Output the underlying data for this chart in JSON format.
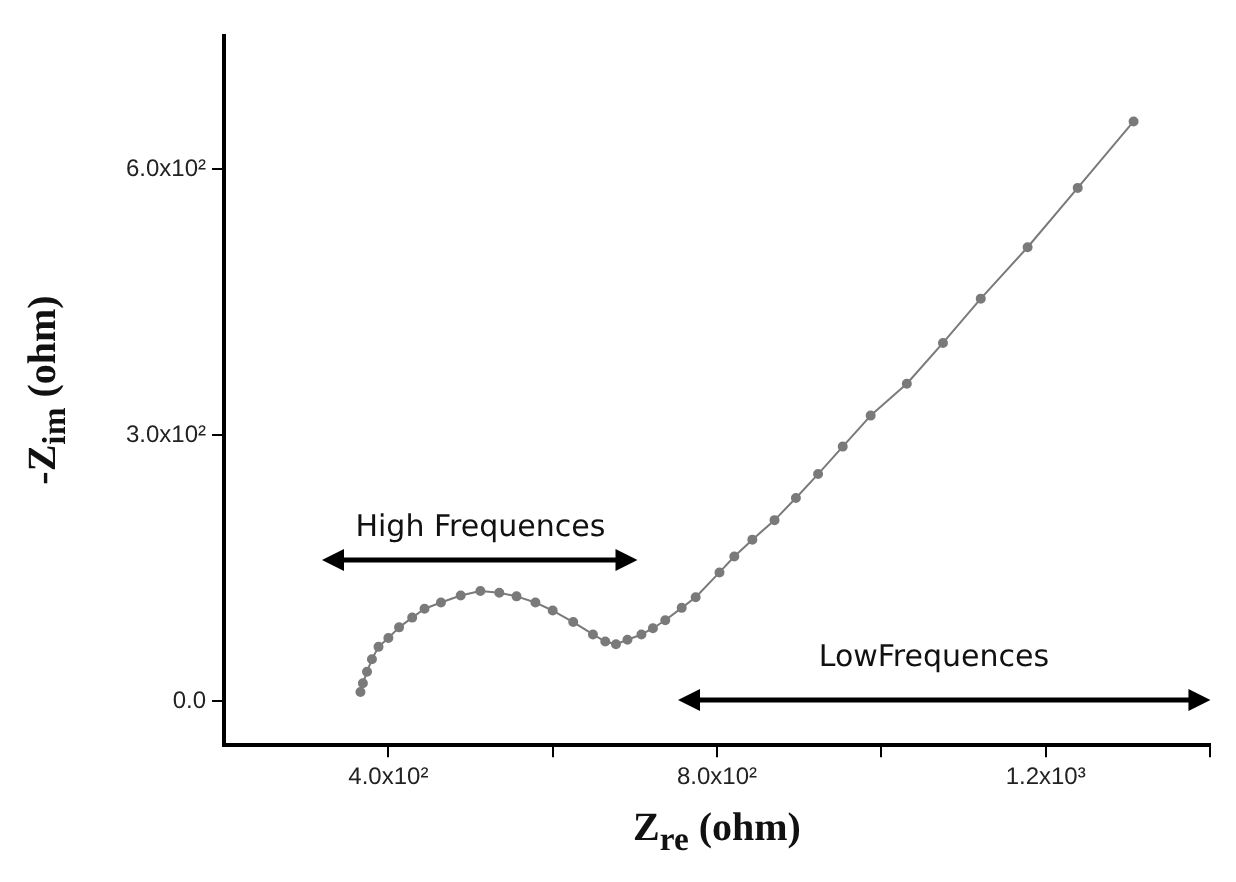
{
  "chart_data": {
    "type": "line",
    "xlabel": "Z$_{re}$ (ohm)",
    "ylabel": "-Z$_{im}$ (ohm)",
    "annotations": [
      "High Frequences",
      "LowFrequences"
    ],
    "series": [
      {
        "color": "#7a7a7a",
        "x": [
          366,
          369,
          374,
          380,
          388,
          400,
          413,
          429,
          444,
          464,
          488,
          512,
          535,
          556,
          579,
          600,
          625,
          649,
          664,
          677,
          691,
          708,
          722,
          737,
          757,
          774,
          803,
          821,
          843,
          870,
          896,
          923,
          953,
          987,
          1031,
          1075,
          1121,
          1178,
          1239,
          1307
        ],
        "values": [
          10,
          20,
          33,
          47,
          61,
          71,
          83,
          94,
          104,
          111,
          119,
          124,
          122,
          118,
          111,
          102,
          89,
          75,
          67,
          64,
          69,
          75,
          82,
          91,
          105,
          117,
          145,
          163,
          182,
          204,
          229,
          256,
          287,
          322,
          358,
          404,
          454,
          512,
          579,
          654
        ]
      }
    ],
    "xlim": [
      200,
      1400
    ],
    "xticks": [
      {
        "value": 400,
        "label": "4.0x10²"
      },
      {
        "value": 600,
        "label": null
      },
      {
        "value": 800,
        "label": "8.0x10²"
      },
      {
        "value": 1000,
        "label": null
      },
      {
        "value": 1200,
        "label": "1.2x10³"
      },
      {
        "value": 1400,
        "label": null
      }
    ],
    "ylim": [
      -50,
      750
    ],
    "yticks": [
      {
        "value": 0,
        "label": "0.0"
      },
      {
        "value": 300,
        "label": "3.0x10²"
      },
      {
        "value": 600,
        "label": "6.0x10²"
      }
    ],
    "marker": "circle",
    "line_style": "solid",
    "grid": false,
    "legend": false
  }
}
